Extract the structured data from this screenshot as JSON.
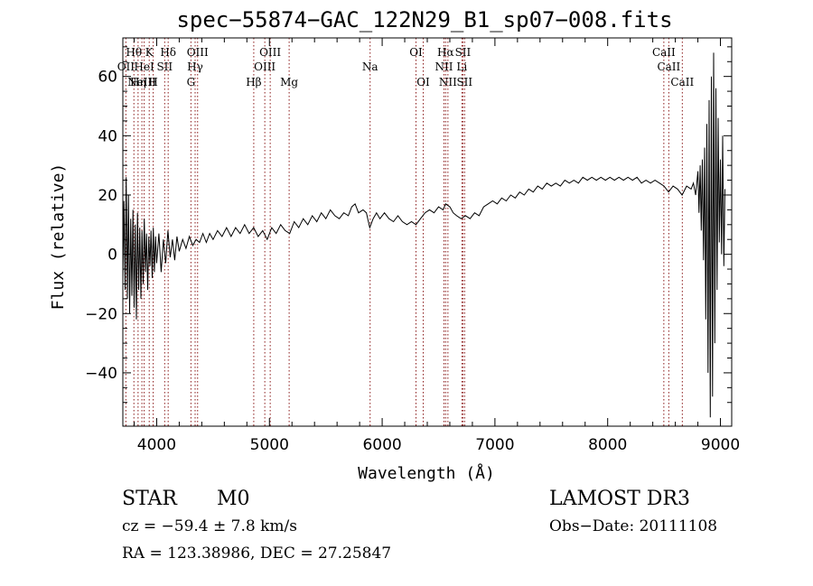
{
  "chart_data": {
    "type": "line",
    "title": "spec−55874−GAC_122N29_B1_sp07−008.fits",
    "xlabel": "Wavelength (Å)",
    "ylabel": "Flux (relative)",
    "xlim": [
      3700,
      9100
    ],
    "ylim": [
      -58,
      73
    ],
    "x_ticks": [
      {
        "value": 4000,
        "label": "4000"
      },
      {
        "value": 5000,
        "label": "5000"
      },
      {
        "value": 6000,
        "label": "6000"
      },
      {
        "value": 7000,
        "label": "7000"
      },
      {
        "value": 8000,
        "label": "8000"
      },
      {
        "value": 9000,
        "label": "9000"
      }
    ],
    "y_ticks": [
      {
        "value": -40,
        "label": "−40"
      },
      {
        "value": -20,
        "label": "−20"
      },
      {
        "value": 0,
        "label": "0"
      },
      {
        "value": 20,
        "label": "20"
      },
      {
        "value": 40,
        "label": "40"
      },
      {
        "value": 60,
        "label": "60"
      }
    ],
    "grid": false,
    "line_color": "#000000",
    "marker_color": "#8b1a1a",
    "line_markers": [
      {
        "wavelength": 3727,
        "label": "OII",
        "row": 2
      },
      {
        "wavelength": 3798,
        "label": "Hθ",
        "row": 1
      },
      {
        "wavelength": 3835,
        "label": "Hη",
        "row": 3
      },
      {
        "wavelength": 3869,
        "label": "NeIII",
        "row": 3
      },
      {
        "wavelength": 3889,
        "label": "HeI",
        "row": 2
      },
      {
        "wavelength": 3934,
        "label": "K",
        "row": 1
      },
      {
        "wavelength": 3969,
        "label": "H",
        "row": 3
      },
      {
        "wavelength": 4071,
        "label": "SII",
        "row": 2
      },
      {
        "wavelength": 4102,
        "label": "Hδ",
        "row": 1
      },
      {
        "wavelength": 4304,
        "label": "G",
        "row": 3
      },
      {
        "wavelength": 4341,
        "label": "Hγ",
        "row": 2
      },
      {
        "wavelength": 4363,
        "label": "OIII",
        "row": 1
      },
      {
        "wavelength": 4861,
        "label": "Hβ",
        "row": 3
      },
      {
        "wavelength": 4959,
        "label": "OIII",
        "row": 2
      },
      {
        "wavelength": 5007,
        "label": "OIII",
        "row": 1
      },
      {
        "wavelength": 5175,
        "label": "Mg",
        "row": 3
      },
      {
        "wavelength": 5893,
        "label": "Na",
        "row": 2
      },
      {
        "wavelength": 6300,
        "label": "OI",
        "row": 1
      },
      {
        "wavelength": 6364,
        "label": "OI",
        "row": 3
      },
      {
        "wavelength": 6548,
        "label": "NII",
        "row": 2
      },
      {
        "wavelength": 6563,
        "label": "Hα",
        "row": 1
      },
      {
        "wavelength": 6583,
        "label": "NII",
        "row": 3
      },
      {
        "wavelength": 6707,
        "label": "Li",
        "row": 2
      },
      {
        "wavelength": 6716,
        "label": "SII",
        "row": 1
      },
      {
        "wavelength": 6731,
        "label": "SII",
        "row": 3
      },
      {
        "wavelength": 8498,
        "label": "CaII",
        "row": 1
      },
      {
        "wavelength": 8542,
        "label": "CaII",
        "row": 2
      },
      {
        "wavelength": 8662,
        "label": "CaII",
        "row": 3
      }
    ],
    "series": [
      {
        "name": "flux",
        "points": [
          [
            3700,
            -8
          ],
          [
            3710,
            18
          ],
          [
            3720,
            -12
          ],
          [
            3730,
            26
          ],
          [
            3740,
            -15
          ],
          [
            3750,
            20
          ],
          [
            3760,
            -20
          ],
          [
            3770,
            12
          ],
          [
            3780,
            -14
          ],
          [
            3790,
            15
          ],
          [
            3800,
            -18
          ],
          [
            3810,
            10
          ],
          [
            3820,
            -22
          ],
          [
            3830,
            14
          ],
          [
            3840,
            -12
          ],
          [
            3850,
            9
          ],
          [
            3860,
            -15
          ],
          [
            3870,
            8
          ],
          [
            3880,
            -10
          ],
          [
            3890,
            12
          ],
          [
            3900,
            -6
          ],
          [
            3910,
            7
          ],
          [
            3920,
            -12
          ],
          [
            3930,
            6
          ],
          [
            3940,
            -4
          ],
          [
            3950,
            8
          ],
          [
            3960,
            -8
          ],
          [
            3970,
            9
          ],
          [
            3980,
            -6
          ],
          [
            3990,
            6
          ],
          [
            4000,
            -3
          ],
          [
            4020,
            7
          ],
          [
            4040,
            -6
          ],
          [
            4060,
            5
          ],
          [
            4080,
            -3
          ],
          [
            4100,
            8
          ],
          [
            4120,
            -1
          ],
          [
            4140,
            5
          ],
          [
            4160,
            -2
          ],
          [
            4180,
            6
          ],
          [
            4200,
            1
          ],
          [
            4230,
            5
          ],
          [
            4260,
            2
          ],
          [
            4290,
            6
          ],
          [
            4320,
            3
          ],
          [
            4350,
            5
          ],
          [
            4380,
            4
          ],
          [
            4410,
            7
          ],
          [
            4440,
            4
          ],
          [
            4470,
            7
          ],
          [
            4500,
            5
          ],
          [
            4540,
            8
          ],
          [
            4580,
            6
          ],
          [
            4620,
            9
          ],
          [
            4660,
            6
          ],
          [
            4700,
            9
          ],
          [
            4740,
            7
          ],
          [
            4780,
            10
          ],
          [
            4820,
            7
          ],
          [
            4860,
            9
          ],
          [
            4900,
            6
          ],
          [
            4940,
            8
          ],
          [
            4980,
            5
          ],
          [
            5020,
            9
          ],
          [
            5060,
            7
          ],
          [
            5100,
            10
          ],
          [
            5140,
            8
          ],
          [
            5180,
            7
          ],
          [
            5220,
            11
          ],
          [
            5260,
            9
          ],
          [
            5300,
            12
          ],
          [
            5340,
            10
          ],
          [
            5380,
            13
          ],
          [
            5420,
            11
          ],
          [
            5460,
            14
          ],
          [
            5500,
            12
          ],
          [
            5540,
            15
          ],
          [
            5580,
            13
          ],
          [
            5620,
            12
          ],
          [
            5660,
            14
          ],
          [
            5700,
            13
          ],
          [
            5730,
            16
          ],
          [
            5760,
            17
          ],
          [
            5790,
            14
          ],
          [
            5830,
            15
          ],
          [
            5860,
            14
          ],
          [
            5890,
            9
          ],
          [
            5920,
            12
          ],
          [
            5950,
            14
          ],
          [
            5980,
            12
          ],
          [
            6020,
            14
          ],
          [
            6060,
            12
          ],
          [
            6100,
            11
          ],
          [
            6140,
            13
          ],
          [
            6180,
            11
          ],
          [
            6220,
            10
          ],
          [
            6260,
            11
          ],
          [
            6300,
            10
          ],
          [
            6340,
            12
          ],
          [
            6380,
            14
          ],
          [
            6420,
            15
          ],
          [
            6460,
            14
          ],
          [
            6500,
            16
          ],
          [
            6540,
            15
          ],
          [
            6563,
            17
          ],
          [
            6600,
            16
          ],
          [
            6630,
            14
          ],
          [
            6660,
            13
          ],
          [
            6700,
            12
          ],
          [
            6740,
            13
          ],
          [
            6780,
            12
          ],
          [
            6820,
            14
          ],
          [
            6860,
            13
          ],
          [
            6900,
            16
          ],
          [
            6940,
            17
          ],
          [
            6980,
            18
          ],
          [
            7020,
            17
          ],
          [
            7060,
            19
          ],
          [
            7100,
            18
          ],
          [
            7140,
            20
          ],
          [
            7180,
            19
          ],
          [
            7220,
            21
          ],
          [
            7260,
            20
          ],
          [
            7300,
            22
          ],
          [
            7340,
            21
          ],
          [
            7380,
            23
          ],
          [
            7420,
            22
          ],
          [
            7460,
            24
          ],
          [
            7500,
            23
          ],
          [
            7540,
            24
          ],
          [
            7580,
            23
          ],
          [
            7620,
            25
          ],
          [
            7660,
            24
          ],
          [
            7700,
            25
          ],
          [
            7740,
            24
          ],
          [
            7780,
            26
          ],
          [
            7820,
            25
          ],
          [
            7860,
            26
          ],
          [
            7900,
            25
          ],
          [
            7940,
            26
          ],
          [
            7980,
            25
          ],
          [
            8020,
            26
          ],
          [
            8060,
            25
          ],
          [
            8100,
            26
          ],
          [
            8140,
            25
          ],
          [
            8180,
            26
          ],
          [
            8220,
            25
          ],
          [
            8260,
            26
          ],
          [
            8300,
            24
          ],
          [
            8340,
            25
          ],
          [
            8380,
            24
          ],
          [
            8420,
            25
          ],
          [
            8460,
            24
          ],
          [
            8500,
            23
          ],
          [
            8540,
            21
          ],
          [
            8580,
            23
          ],
          [
            8620,
            22
          ],
          [
            8660,
            20
          ],
          [
            8700,
            23
          ],
          [
            8740,
            22
          ],
          [
            8760,
            24
          ],
          [
            8780,
            20
          ],
          [
            8800,
            28
          ],
          [
            8810,
            14
          ],
          [
            8820,
            30
          ],
          [
            8830,
            8
          ],
          [
            8840,
            32
          ],
          [
            8850,
            -2
          ],
          [
            8860,
            36
          ],
          [
            8870,
            -22
          ],
          [
            8880,
            44
          ],
          [
            8890,
            -40
          ],
          [
            8900,
            52
          ],
          [
            8910,
            -55
          ],
          [
            8920,
            60
          ],
          [
            8930,
            -48
          ],
          [
            8940,
            68
          ],
          [
            8950,
            -30
          ],
          [
            8960,
            56
          ],
          [
            8970,
            -12
          ],
          [
            8980,
            46
          ],
          [
            8990,
            4
          ],
          [
            9000,
            32
          ],
          [
            9010,
            0
          ],
          [
            9020,
            40
          ],
          [
            9030,
            -4
          ],
          [
            9040,
            22
          ]
        ]
      }
    ]
  },
  "info": {
    "object_class": "STAR",
    "subclass": "M0",
    "survey": "LAMOST DR3",
    "redshift": "cz = −59.4 ± 7.8 km/s",
    "obs_date": "Obs−Date: 20111108",
    "coords": "RA = 123.38986, DEC =  27.25847"
  }
}
